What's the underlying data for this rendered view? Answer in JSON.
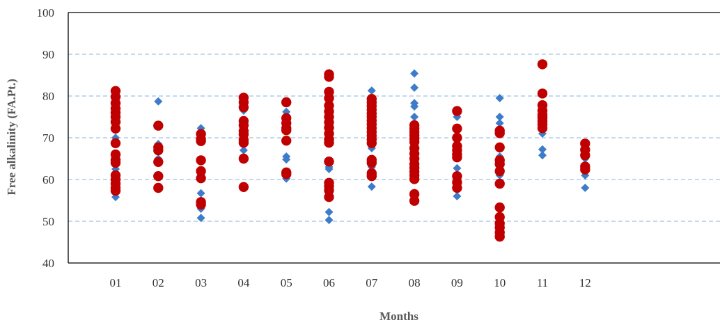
{
  "chart_data": {
    "type": "scatter",
    "xlabel": "Months",
    "ylabel": "Free alkalinity (FA.Pt.)",
    "ylim": [
      40,
      100
    ],
    "yticks": [
      40,
      50,
      60,
      70,
      80,
      90,
      100
    ],
    "categories": [
      "01",
      "02",
      "03",
      "04",
      "05",
      "06",
      "07",
      "08",
      "09",
      "10",
      "11",
      "12"
    ],
    "grid": {
      "horizontal": true,
      "style": "dashed"
    },
    "colors": {
      "series_a": "#3d7cc9",
      "series_b": "#c00000",
      "grid": "#9dc3e6",
      "axis": "#000000"
    },
    "series": [
      {
        "marker": "diamond",
        "color": "#3d7cc9",
        "points": [
          {
            "x": "01",
            "y": 55.8
          },
          {
            "x": "01",
            "y": 59.0
          },
          {
            "x": "01",
            "y": 62.5
          },
          {
            "x": "01",
            "y": 66.0
          },
          {
            "x": "01",
            "y": 70.0
          },
          {
            "x": "01",
            "y": 73.5
          },
          {
            "x": "01",
            "y": 77.0
          },
          {
            "x": "01",
            "y": 80.5
          },
          {
            "x": "02",
            "y": 78.7
          },
          {
            "x": "02",
            "y": 68.5
          },
          {
            "x": "02",
            "y": 65.0
          },
          {
            "x": "03",
            "y": 72.3
          },
          {
            "x": "03",
            "y": 56.7
          },
          {
            "x": "03",
            "y": 55.0
          },
          {
            "x": "03",
            "y": 53.0
          },
          {
            "x": "03",
            "y": 50.8
          },
          {
            "x": "04",
            "y": 76.5
          },
          {
            "x": "04",
            "y": 74.0
          },
          {
            "x": "04",
            "y": 70.0
          },
          {
            "x": "04",
            "y": 67.0
          },
          {
            "x": "05",
            "y": 76.2
          },
          {
            "x": "05",
            "y": 65.5
          },
          {
            "x": "05",
            "y": 64.8
          },
          {
            "x": "05",
            "y": 60.2
          },
          {
            "x": "06",
            "y": 85.5
          },
          {
            "x": "06",
            "y": 63.0
          },
          {
            "x": "06",
            "y": 62.5
          },
          {
            "x": "06",
            "y": 52.2
          },
          {
            "x": "06",
            "y": 50.3
          },
          {
            "x": "07",
            "y": 81.3
          },
          {
            "x": "07",
            "y": 67.5
          },
          {
            "x": "07",
            "y": 63.0
          },
          {
            "x": "07",
            "y": 61.0
          },
          {
            "x": "07",
            "y": 58.3
          },
          {
            "x": "08",
            "y": 85.4
          },
          {
            "x": "08",
            "y": 82.0
          },
          {
            "x": "08",
            "y": 78.3
          },
          {
            "x": "08",
            "y": 77.5
          },
          {
            "x": "08",
            "y": 75.0
          },
          {
            "x": "08",
            "y": 68.0
          },
          {
            "x": "08",
            "y": 61.0
          },
          {
            "x": "09",
            "y": 75.0
          },
          {
            "x": "09",
            "y": 62.7
          },
          {
            "x": "09",
            "y": 60.3
          },
          {
            "x": "09",
            "y": 59.5
          },
          {
            "x": "09",
            "y": 56.0
          },
          {
            "x": "10",
            "y": 79.5
          },
          {
            "x": "10",
            "y": 75.0
          },
          {
            "x": "10",
            "y": 73.5
          },
          {
            "x": "10",
            "y": 72.0
          },
          {
            "x": "10",
            "y": 65.5
          },
          {
            "x": "10",
            "y": 61.0
          },
          {
            "x": "11",
            "y": 74.0
          },
          {
            "x": "11",
            "y": 71.0
          },
          {
            "x": "11",
            "y": 67.2
          },
          {
            "x": "11",
            "y": 65.8
          },
          {
            "x": "12",
            "y": 65.0
          },
          {
            "x": "12",
            "y": 61.0
          },
          {
            "x": "12",
            "y": 58.0
          }
        ]
      },
      {
        "marker": "circle",
        "color": "#c00000",
        "points": [
          {
            "x": "01",
            "y": 81.2
          },
          {
            "x": "01",
            "y": 79.8
          },
          {
            "x": "01",
            "y": 78.3
          },
          {
            "x": "01",
            "y": 77.0
          },
          {
            "x": "01",
            "y": 76.0
          },
          {
            "x": "01",
            "y": 75.0
          },
          {
            "x": "01",
            "y": 73.8
          },
          {
            "x": "01",
            "y": 72.2
          },
          {
            "x": "01",
            "y": 68.7
          },
          {
            "x": "01",
            "y": 66.0
          },
          {
            "x": "01",
            "y": 64.7
          },
          {
            "x": "01",
            "y": 64.0
          },
          {
            "x": "01",
            "y": 61.0
          },
          {
            "x": "01",
            "y": 60.0
          },
          {
            "x": "01",
            "y": 59.0
          },
          {
            "x": "01",
            "y": 58.0
          },
          {
            "x": "01",
            "y": 57.3
          },
          {
            "x": "02",
            "y": 72.9
          },
          {
            "x": "02",
            "y": 67.7
          },
          {
            "x": "02",
            "y": 67.0
          },
          {
            "x": "02",
            "y": 64.2
          },
          {
            "x": "02",
            "y": 60.8
          },
          {
            "x": "02",
            "y": 58.0
          },
          {
            "x": "03",
            "y": 70.9
          },
          {
            "x": "03",
            "y": 69.7
          },
          {
            "x": "03",
            "y": 69.2
          },
          {
            "x": "03",
            "y": 64.6
          },
          {
            "x": "03",
            "y": 62.0
          },
          {
            "x": "03",
            "y": 60.3
          },
          {
            "x": "03",
            "y": 54.6
          },
          {
            "x": "03",
            "y": 54.0
          },
          {
            "x": "04",
            "y": 79.6
          },
          {
            "x": "04",
            "y": 78.5
          },
          {
            "x": "04",
            "y": 77.3
          },
          {
            "x": "04",
            "y": 74.0
          },
          {
            "x": "04",
            "y": 73.0
          },
          {
            "x": "04",
            "y": 71.6
          },
          {
            "x": "04",
            "y": 70.8
          },
          {
            "x": "04",
            "y": 69.5
          },
          {
            "x": "04",
            "y": 68.8
          },
          {
            "x": "04",
            "y": 65.0
          },
          {
            "x": "04",
            "y": 58.2
          },
          {
            "x": "05",
            "y": 78.5
          },
          {
            "x": "05",
            "y": 74.7
          },
          {
            "x": "05",
            "y": 73.5
          },
          {
            "x": "05",
            "y": 72.3
          },
          {
            "x": "05",
            "y": 71.8
          },
          {
            "x": "05",
            "y": 69.3
          },
          {
            "x": "05",
            "y": 61.7
          },
          {
            "x": "05",
            "y": 61.3
          },
          {
            "x": "06",
            "y": 85.2
          },
          {
            "x": "06",
            "y": 84.6
          },
          {
            "x": "06",
            "y": 81.0
          },
          {
            "x": "06",
            "y": 79.5
          },
          {
            "x": "06",
            "y": 77.7
          },
          {
            "x": "06",
            "y": 76.3
          },
          {
            "x": "06",
            "y": 75.0
          },
          {
            "x": "06",
            "y": 73.7
          },
          {
            "x": "06",
            "y": 72.4
          },
          {
            "x": "06",
            "y": 71.0
          },
          {
            "x": "06",
            "y": 69.6
          },
          {
            "x": "06",
            "y": 68.8
          },
          {
            "x": "06",
            "y": 64.3
          },
          {
            "x": "06",
            "y": 59.2
          },
          {
            "x": "06",
            "y": 58.4
          },
          {
            "x": "06",
            "y": 57.4
          },
          {
            "x": "06",
            "y": 55.8
          },
          {
            "x": "07",
            "y": 79.3
          },
          {
            "x": "07",
            "y": 78.5
          },
          {
            "x": "07",
            "y": 77.6
          },
          {
            "x": "07",
            "y": 76.7
          },
          {
            "x": "07",
            "y": 75.8
          },
          {
            "x": "07",
            "y": 75.0
          },
          {
            "x": "07",
            "y": 74.1
          },
          {
            "x": "07",
            "y": 73.2
          },
          {
            "x": "07",
            "y": 72.3
          },
          {
            "x": "07",
            "y": 71.4
          },
          {
            "x": "07",
            "y": 70.5
          },
          {
            "x": "07",
            "y": 69.6
          },
          {
            "x": "07",
            "y": 68.7
          },
          {
            "x": "07",
            "y": 64.7
          },
          {
            "x": "07",
            "y": 64.0
          },
          {
            "x": "07",
            "y": 61.5
          },
          {
            "x": "07",
            "y": 60.8
          },
          {
            "x": "08",
            "y": 73.0
          },
          {
            "x": "08",
            "y": 72.2
          },
          {
            "x": "08",
            "y": 71.4
          },
          {
            "x": "08",
            "y": 70.6
          },
          {
            "x": "08",
            "y": 69.8
          },
          {
            "x": "08",
            "y": 69.0
          },
          {
            "x": "08",
            "y": 67.5
          },
          {
            "x": "08",
            "y": 66.2
          },
          {
            "x": "08",
            "y": 65.0
          },
          {
            "x": "08",
            "y": 63.7
          },
          {
            "x": "08",
            "y": 62.8
          },
          {
            "x": "08",
            "y": 61.9
          },
          {
            "x": "08",
            "y": 61.0
          },
          {
            "x": "08",
            "y": 60.1
          },
          {
            "x": "08",
            "y": 56.5
          },
          {
            "x": "08",
            "y": 54.9
          },
          {
            "x": "09",
            "y": 76.4
          },
          {
            "x": "09",
            "y": 72.2
          },
          {
            "x": "09",
            "y": 70.0
          },
          {
            "x": "09",
            "y": 68.0
          },
          {
            "x": "09",
            "y": 67.0
          },
          {
            "x": "09",
            "y": 66.0
          },
          {
            "x": "09",
            "y": 65.3
          },
          {
            "x": "09",
            "y": 60.8
          },
          {
            "x": "09",
            "y": 59.3
          },
          {
            "x": "09",
            "y": 58.0
          },
          {
            "x": "10",
            "y": 71.7
          },
          {
            "x": "10",
            "y": 71.1
          },
          {
            "x": "10",
            "y": 67.7
          },
          {
            "x": "10",
            "y": 64.6
          },
          {
            "x": "10",
            "y": 63.7
          },
          {
            "x": "10",
            "y": 62.0
          },
          {
            "x": "10",
            "y": 59.0
          },
          {
            "x": "10",
            "y": 53.3
          },
          {
            "x": "10",
            "y": 51.0
          },
          {
            "x": "10",
            "y": 49.5
          },
          {
            "x": "10",
            "y": 48.5
          },
          {
            "x": "10",
            "y": 47.3
          },
          {
            "x": "10",
            "y": 46.3
          },
          {
            "x": "11",
            "y": 87.6
          },
          {
            "x": "11",
            "y": 80.6
          },
          {
            "x": "11",
            "y": 77.8
          },
          {
            "x": "11",
            "y": 76.5
          },
          {
            "x": "11",
            "y": 75.5
          },
          {
            "x": "11",
            "y": 74.8
          },
          {
            "x": "11",
            "y": 74.0
          },
          {
            "x": "11",
            "y": 73.2
          },
          {
            "x": "11",
            "y": 72.3
          },
          {
            "x": "12",
            "y": 68.6
          },
          {
            "x": "12",
            "y": 67.1
          },
          {
            "x": "12",
            "y": 65.8
          },
          {
            "x": "12",
            "y": 63.1
          },
          {
            "x": "12",
            "y": 62.4
          }
        ]
      }
    ]
  }
}
